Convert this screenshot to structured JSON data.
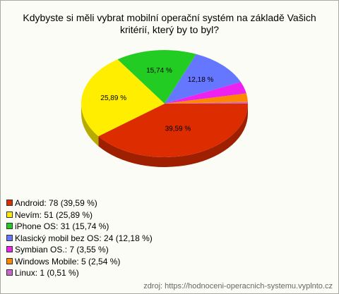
{
  "chart_data": {
    "type": "pie",
    "title": "Kdybyste si měli vybrat mobilní operační systém na základě Vašich kritérií, který by to byl?",
    "categories": [
      "Android: 78 (39,59 %)",
      "Nevím: 51 (25,89 %)",
      "iPhone OS: 31 (15,74 %)",
      "Klasický mobil bez OS: 24 (12,18 %)",
      "Symbian OS.: 7 (3,55 %)",
      "Windows Mobile: 5 (2,54 %)",
      "Linux: 1 (0,51 %)"
    ],
    "values": [
      39.59,
      25.89,
      15.74,
      12.18,
      3.55,
      2.54,
      0.51
    ],
    "value_labels": [
      "39,59 %",
      "25,89 %",
      "15,74 %",
      "12,18 %",
      null,
      null,
      null
    ],
    "colors": [
      "#dd2c00",
      "#ffee00",
      "#22cc22",
      "#6677ff",
      "#ee22ee",
      "#ff8800",
      "#cc66cc"
    ],
    "source": "zdroj: https://hodnoceni-operacnich-systemu.vyplnto.cz"
  }
}
